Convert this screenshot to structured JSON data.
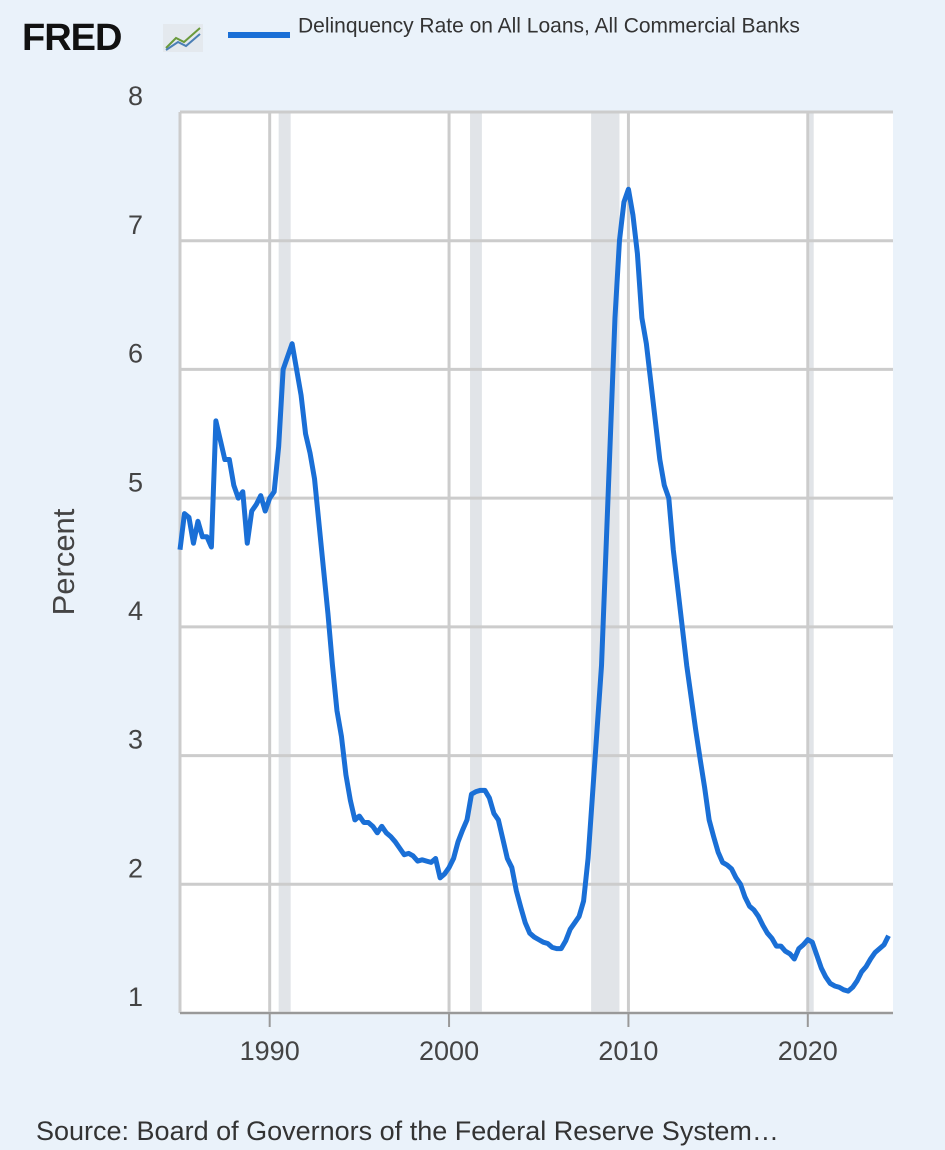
{
  "logo": "FRED",
  "chart_data": {
    "type": "line",
    "ylabel": "Percent",
    "source": "Source: Board of Governors of the Federal Reserve System…",
    "xlim": [
      1985,
      2024.75
    ],
    "ylim": [
      1,
      8
    ],
    "xticks": [
      1990,
      2000,
      2010,
      2020
    ],
    "yticks": [
      1,
      2,
      3,
      4,
      5,
      6,
      7,
      8
    ],
    "grid": true,
    "shaded_ranges": [
      [
        1990.5,
        1991.17
      ],
      [
        2001.17,
        2001.83
      ],
      [
        2007.92,
        2009.5
      ],
      [
        2020.08,
        2020.33
      ]
    ],
    "x": [
      1985,
      1985.25,
      1985.5,
      1985.75,
      1986,
      1986.25,
      1986.5,
      1986.75,
      1987,
      1987.25,
      1987.5,
      1987.75,
      1988,
      1988.25,
      1988.5,
      1988.75,
      1989,
      1989.25,
      1989.5,
      1989.75,
      1990,
      1990.25,
      1990.5,
      1990.75,
      1991,
      1991.25,
      1991.5,
      1991.75,
      1992,
      1992.25,
      1992.5,
      1992.75,
      1993,
      1993.25,
      1993.5,
      1993.75,
      1994,
      1994.25,
      1994.5,
      1994.75,
      1995,
      1995.25,
      1995.5,
      1995.75,
      1996,
      1996.25,
      1996.5,
      1996.75,
      1997,
      1997.25,
      1997.5,
      1997.75,
      1998,
      1998.25,
      1998.5,
      1998.75,
      1999,
      1999.25,
      1999.5,
      1999.75,
      2000,
      2000.25,
      2000.5,
      2000.75,
      2001,
      2001.25,
      2001.5,
      2001.75,
      2002,
      2002.25,
      2002.5,
      2002.75,
      2003,
      2003.25,
      2003.5,
      2003.75,
      2004,
      2004.25,
      2004.5,
      2004.75,
      2005,
      2005.25,
      2005.5,
      2005.75,
      2006,
      2006.25,
      2006.5,
      2006.75,
      2007,
      2007.25,
      2007.5,
      2007.75,
      2008,
      2008.25,
      2008.5,
      2008.75,
      2009,
      2009.25,
      2009.5,
      2009.75,
      2010,
      2010.25,
      2010.5,
      2010.75,
      2011,
      2011.25,
      2011.5,
      2011.75,
      2012,
      2012.25,
      2012.5,
      2012.75,
      2013,
      2013.25,
      2013.5,
      2013.75,
      2014,
      2014.25,
      2014.5,
      2014.75,
      2015,
      2015.25,
      2015.5,
      2015.75,
      2016,
      2016.25,
      2016.5,
      2016.75,
      2017,
      2017.25,
      2017.5,
      2017.75,
      2018,
      2018.25,
      2018.5,
      2018.75,
      2019,
      2019.25,
      2019.5,
      2019.75,
      2020,
      2020.25,
      2020.5,
      2020.75,
      2021,
      2021.25,
      2021.5,
      2021.75,
      2022,
      2022.25,
      2022.5,
      2022.75,
      2023,
      2023.25,
      2023.5,
      2023.75,
      2024,
      2024.25,
      2024.5
    ],
    "series": [
      {
        "name": "Delinquency Rate on All Loans, All Commercial Banks",
        "color": "#1a6fd6",
        "values": [
          4.6,
          4.88,
          4.85,
          4.65,
          4.82,
          4.7,
          4.7,
          4.62,
          5.6,
          5.45,
          5.3,
          5.3,
          5.1,
          5.0,
          5.05,
          4.65,
          4.9,
          4.95,
          5.02,
          4.9,
          5.0,
          5.05,
          5.4,
          6.0,
          6.1,
          6.2,
          6.0,
          5.8,
          5.5,
          5.35,
          5.15,
          4.8,
          4.45,
          4.1,
          3.7,
          3.35,
          3.15,
          2.85,
          2.65,
          2.5,
          2.53,
          2.48,
          2.48,
          2.45,
          2.4,
          2.45,
          2.4,
          2.37,
          2.33,
          2.28,
          2.23,
          2.24,
          2.22,
          2.18,
          2.19,
          2.18,
          2.17,
          2.2,
          2.05,
          2.08,
          2.13,
          2.2,
          2.33,
          2.42,
          2.5,
          2.7,
          2.72,
          2.73,
          2.73,
          2.67,
          2.55,
          2.5,
          2.35,
          2.2,
          2.13,
          1.95,
          1.82,
          1.7,
          1.62,
          1.59,
          1.57,
          1.55,
          1.54,
          1.51,
          1.5,
          1.5,
          1.56,
          1.65,
          1.7,
          1.75,
          1.87,
          2.2,
          2.7,
          3.2,
          3.7,
          4.6,
          5.5,
          6.4,
          7.0,
          7.3,
          7.4,
          7.2,
          6.9,
          6.4,
          6.2,
          5.9,
          5.6,
          5.3,
          5.1,
          5.0,
          4.6,
          4.3,
          4.0,
          3.7,
          3.45,
          3.2,
          2.97,
          2.75,
          2.5,
          2.37,
          2.25,
          2.17,
          2.15,
          2.12,
          2.05,
          2.0,
          1.9,
          1.83,
          1.8,
          1.75,
          1.68,
          1.62,
          1.58,
          1.52,
          1.52,
          1.48,
          1.46,
          1.42,
          1.5,
          1.53,
          1.57,
          1.55,
          1.45,
          1.35,
          1.28,
          1.23,
          1.21,
          1.2,
          1.18,
          1.17,
          1.2,
          1.25,
          1.32,
          1.36,
          1.42,
          1.47,
          1.5,
          1.53,
          1.6
        ]
      }
    ]
  }
}
